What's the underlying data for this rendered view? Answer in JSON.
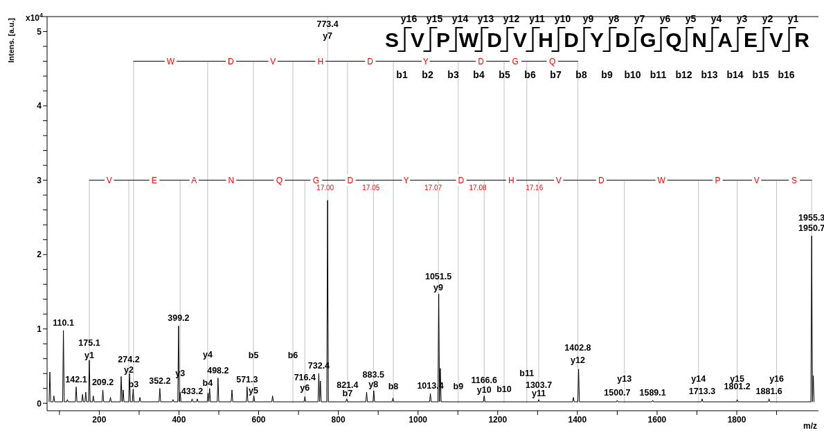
{
  "chart_data": {
    "type": "line",
    "ylabel": "Intens. [a.u.]",
    "xlabel": "m/z",
    "xlim": [
      69,
      2005
    ],
    "ylim": [
      -0.1,
      5.2
    ],
    "xticks": [
      {
        "value": 100,
        "label": null
      },
      200,
      {
        "value": 300,
        "label": null
      },
      400,
      {
        "value": 500,
        "label": null
      },
      600,
      {
        "value": 700,
        "label": null
      },
      800,
      {
        "value": 900,
        "label": null
      },
      1000,
      {
        "value": 1100,
        "label": null
      },
      1200,
      {
        "value": 1300,
        "label": null
      },
      1400,
      {
        "value": 1500,
        "label": null
      },
      1600,
      {
        "value": 1700,
        "label": null
      },
      1800,
      {
        "value": 1900,
        "label": null
      }
    ],
    "yticks": [
      0,
      {
        "value": 0.2,
        "label": null
      },
      {
        "value": 0.4,
        "label": null
      },
      {
        "value": 0.6,
        "label": null
      },
      {
        "value": 0.8,
        "label": null
      },
      1,
      {
        "value": 1.2,
        "label": null
      },
      {
        "value": 1.4,
        "label": null
      },
      {
        "value": 1.6,
        "label": null
      },
      {
        "value": 1.8,
        "label": null
      },
      2,
      {
        "value": 2.2,
        "label": null
      },
      {
        "value": 2.4,
        "label": null
      },
      {
        "value": 2.6,
        "label": null
      },
      {
        "value": 2.8,
        "label": null
      },
      3,
      {
        "value": 3.2,
        "label": null
      },
      {
        "value": 3.4,
        "label": null
      },
      {
        "value": 3.6,
        "label": null
      },
      {
        "value": 3.8,
        "label": null
      },
      4,
      {
        "value": 4.2,
        "label": null
      },
      {
        "value": 4.4,
        "label": null
      },
      {
        "value": 4.6,
        "label": null
      },
      {
        "value": 4.8,
        "label": null
      },
      5,
      {
        "value": 5.2,
        "label": null
      }
    ],
    "series": [
      {
        "color": "#000000",
        "x": [
          74,
          76,
          78,
          84,
          86,
          88,
          108,
          110,
          112,
          118,
          120,
          122,
          140,
          142,
          144,
          156,
          158,
          160,
          164,
          166,
          168,
          173,
          175,
          177,
          183,
          185,
          187,
          207,
          209,
          211,
          226,
          228,
          230,
          253,
          255,
          257,
          258,
          260,
          262,
          274,
          276,
          278,
          283,
          285,
          287,
          300,
          302,
          304,
          350,
          352,
          354,
          383,
          385,
          387,
          397,
          399,
          401,
          401,
          403,
          405,
          431,
          433,
          435,
          444,
          446,
          448,
          471,
          473,
          475,
          475,
          477,
          479,
          496,
          498,
          500,
          531,
          533,
          535,
          569,
          571,
          573,
          586,
          588,
          590,
          633,
          635,
          637,
          714,
          716,
          718,
          749,
          751,
          753,
          753,
          755,
          757,
          771,
          773,
          775,
          819,
          821,
          823,
          869,
          871,
          873,
          887,
          889,
          891,
          935,
          937,
          939,
          1029,
          1031,
          1033,
          1050,
          1052,
          1054,
          1054,
          1056,
          1058,
          1164,
          1166,
          1168,
          1301,
          1303,
          1305,
          1388,
          1390,
          1392,
          1401,
          1403,
          1405,
          1498,
          1500,
          1502,
          1587,
          1589,
          1591,
          1711,
          1713,
          1715,
          1799,
          1801,
          1803,
          1879,
          1881,
          1883,
          1986,
          1988,
          1990,
          1990,
          1992,
          1994
        ],
        "values": [
          0.02,
          0.42,
          0.02,
          0.02,
          0.1,
          0.02,
          0.02,
          0.98,
          0.02,
          0.02,
          0.05,
          0.02,
          0.02,
          0.22,
          0.02,
          0.02,
          0.12,
          0.02,
          0.02,
          0.15,
          0.02,
          0.02,
          0.58,
          0.02,
          0.02,
          0.1,
          0.02,
          0.02,
          0.18,
          0.02,
          0.02,
          0.08,
          0.02,
          0.02,
          0.36,
          0.02,
          0.02,
          0.18,
          0.02,
          0.02,
          0.4,
          0.02,
          0.02,
          0.19,
          0.02,
          0.02,
          0.08,
          0.02,
          0.02,
          0.2,
          0.02,
          0.02,
          0.05,
          0.02,
          0.02,
          1.04,
          0.02,
          0.02,
          0.15,
          0.02,
          0.02,
          0.06,
          0.02,
          0.02,
          0.06,
          0.02,
          0.02,
          0.14,
          0.02,
          0.02,
          0.2,
          0.02,
          0.02,
          0.34,
          0.02,
          0.02,
          0.18,
          0.02,
          0.02,
          0.22,
          0.02,
          0.02,
          0.1,
          0.02,
          0.02,
          0.1,
          0.02,
          0.02,
          0.09,
          0.02,
          0.02,
          0.4,
          0.02,
          0.02,
          0.3,
          0.02,
          0.02,
          2.73,
          0.02,
          0.02,
          0.06,
          0.02,
          0.02,
          0.15,
          0.02,
          0.02,
          0.17,
          0.02,
          0.02,
          0.07,
          0.02,
          0.02,
          0.13,
          0.02,
          0.02,
          1.47,
          0.02,
          0.02,
          0.47,
          0.02,
          0.02,
          0.1,
          0.02,
          0.02,
          0.05,
          0.02,
          0.02,
          0.08,
          0.02,
          0.02,
          0.46,
          0.02,
          0.02,
          0.04,
          0.02,
          0.02,
          0.04,
          0.02,
          0.02,
          0.06,
          0.02,
          0.02,
          0.05,
          0.02,
          0.02,
          0.06,
          0.02,
          0.02,
          2.25,
          0.02,
          0.02,
          0.37,
          0.02
        ]
      },
      {
        "color": "#000000",
        "x": [
          286,
          472,
          587,
          686,
          823,
          938,
          1101,
          1216,
          1273,
          1401
        ],
        "values": [
          4.6,
          4.6,
          4.6,
          4.6,
          4.6,
          4.6,
          4.6,
          4.6,
          4.6,
          4.6
        ]
      },
      {
        "color": "#000000",
        "x": [
          175,
          274,
          403,
          474,
          588,
          716,
          773,
          888,
          1051,
          1166,
          1303,
          1403,
          1518,
          1704,
          1801,
          1900,
          1988
        ],
        "values": [
          3.0,
          3.0,
          3.0,
          3.0,
          3.0,
          3.0,
          3.0,
          3.0,
          3.0,
          3.0,
          3.0,
          3.0,
          3.0,
          3.0,
          3.0,
          3.0,
          3.0
        ]
      }
    ],
    "ref_lines": [
      {
        "axis": "x",
        "value": 175,
        "color": "#c0c0c0"
      },
      {
        "axis": "x",
        "value": 274,
        "color": "#c0c0c0"
      },
      {
        "axis": "x",
        "value": 286,
        "color": "#c0c0c0"
      },
      {
        "axis": "x",
        "value": 403,
        "color": "#c0c0c0"
      },
      {
        "axis": "x",
        "value": 472,
        "color": "#c0c0c0"
      },
      {
        "axis": "x",
        "value": 587,
        "color": "#c0c0c0"
      },
      {
        "axis": "x",
        "value": 686,
        "color": "#c0c0c0"
      },
      {
        "axis": "x",
        "value": 716,
        "color": "#c0c0c0"
      },
      {
        "axis": "x",
        "value": 773,
        "color": "#c0c0c0"
      },
      {
        "axis": "x",
        "value": 823,
        "color": "#c0c0c0"
      },
      {
        "axis": "x",
        "value": 888,
        "color": "#c0c0c0"
      },
      {
        "axis": "x",
        "value": 938,
        "color": "#c0c0c0"
      },
      {
        "axis": "x",
        "value": 1051,
        "color": "#c0c0c0"
      },
      {
        "axis": "x",
        "value": 1101,
        "color": "#c0c0c0"
      },
      {
        "axis": "x",
        "value": 1166,
        "color": "#c0c0c0"
      },
      {
        "axis": "x",
        "value": 1216,
        "color": "#c0c0c0"
      },
      {
        "axis": "x",
        "value": 1273,
        "color": "#c0c0c0"
      },
      {
        "axis": "x",
        "value": 1303,
        "color": "#c0c0c0"
      },
      {
        "axis": "x",
        "value": 1401,
        "color": "#c0c0c0"
      },
      {
        "axis": "x",
        "value": 1518,
        "color": "#c0c0c0"
      },
      {
        "axis": "x",
        "value": 1704,
        "color": "#c0c0c0"
      },
      {
        "axis": "x",
        "value": 1801,
        "color": "#c0c0c0"
      },
      {
        "axis": "x",
        "value": 1900,
        "color": "#c0c0c0"
      },
      {
        "axis": "x",
        "value": 1988,
        "color": "#c0c0c0"
      }
    ],
    "annotations": [
      "x10$^{4}$",
      "S",
      "V",
      "P",
      "W",
      "D",
      "V",
      "H",
      "D",
      "Y",
      "D",
      "G",
      "Q",
      "N",
      "A",
      "E",
      "V",
      "R",
      "y16",
      "y15",
      "y14",
      "y13",
      "y12",
      "y11",
      "y10",
      "y9",
      "y8",
      "y7",
      "y6",
      "y5",
      "y4",
      "y3",
      "y2",
      "y1",
      "b1",
      "b2",
      "b3",
      "b4",
      "b5",
      "b6",
      "b7",
      "b8",
      "b9",
      "b10",
      "b11",
      "b12",
      "b13",
      "b14",
      "b15",
      "b16",
      {
        "text": "W",
        "x": 379,
        "y": 4.6
      },
      {
        "text": "D",
        "x": 530,
        "y": 4.6
      },
      {
        "text": "V",
        "x": 636,
        "y": 4.6
      },
      {
        "text": "H",
        "x": 755,
        "y": 4.6
      },
      {
        "text": "D",
        "x": 880,
        "y": 4.6
      },
      {
        "text": "Y",
        "x": 1019,
        "y": 4.6
      },
      {
        "text": "D",
        "x": 1158,
        "y": 4.6
      },
      {
        "text": "G",
        "x": 1244,
        "y": 4.6
      },
      {
        "text": "Q",
        "x": 1337,
        "y": 4.6
      },
      {
        "text": "V",
        "x": 225,
        "y": 3.0
      },
      {
        "text": "E",
        "x": 338,
        "y": 3.0
      },
      {
        "text": "A",
        "x": 438,
        "y": 3.0
      },
      {
        "text": "N",
        "x": 531,
        "y": 3.0
      },
      {
        "text": "Q",
        "x": 652,
        "y": 3.0
      },
      {
        "text": "G",
        "x": 744,
        "y": 3.0
      },
      {
        "text": "D",
        "x": 830,
        "y": 3.0
      },
      {
        "text": "Y",
        "x": 970,
        "y": 3.0
      },
      {
        "text": "D",
        "x": 1108,
        "y": 3.0
      },
      {
        "text": "H",
        "x": 1234,
        "y": 3.0
      },
      {
        "text": "V",
        "x": 1353,
        "y": 3.0
      },
      {
        "text": "D",
        "x": 1460,
        "y": 3.0
      },
      {
        "text": "W",
        "x": 1611,
        "y": 3.0
      },
      {
        "text": "P",
        "x": 1752,
        "y": 3.0
      },
      {
        "text": "V",
        "x": 1850,
        "y": 3.0
      },
      {
        "text": "S",
        "x": 1944,
        "y": 3.0
      },
      {
        "text": "17.00",
        "x": 767,
        "y": 3.0
      },
      {
        "text": "17.05",
        "x": 882,
        "y": 3.0
      },
      {
        "text": "17.07",
        "x": 1038,
        "y": 3.0
      },
      {
        "text": "17.08",
        "x": 1150,
        "y": 3.0
      },
      {
        "text": "17.16",
        "x": 1292,
        "y": 3.0
      },
      {
        "text": "110.1",
        "x": 110,
        "y": 0.98
      },
      {
        "text": "175.1",
        "x": 175,
        "y": 0.71
      },
      {
        "text": "y1",
        "x": 175,
        "y": 0.54
      },
      {
        "text": "142.1",
        "x": 142,
        "y": 0.22
      },
      {
        "text": "209.2",
        "x": 209,
        "y": 0.18
      },
      {
        "text": "274.2",
        "x": 274,
        "y": 0.49
      },
      {
        "text": "y2",
        "x": 274,
        "y": 0.35
      },
      {
        "text": "b3",
        "x": 286,
        "y": 0.15
      },
      {
        "text": "352.2",
        "x": 352,
        "y": 0.2
      },
      {
        "text": "399.2",
        "x": 399,
        "y": 1.04
      },
      {
        "text": "y3",
        "x": 403,
        "y": 0.3
      },
      {
        "text": "433.2",
        "x": 433,
        "y": 0.06
      },
      {
        "text": "b4",
        "x": 472,
        "y": 0.17
      },
      {
        "text": "y4",
        "x": 472,
        "y": 0.55
      },
      {
        "text": "498.2",
        "x": 498,
        "y": 0.34
      },
      {
        "text": "b5",
        "x": 587,
        "y": 0.54
      },
      {
        "text": "571.3",
        "x": 571,
        "y": 0.22
      },
      {
        "text": "y5",
        "x": 587,
        "y": 0.07
      },
      {
        "text": "b6",
        "x": 686,
        "y": 0.54
      },
      {
        "text": "732.4",
        "x": 751,
        "y": 0.4
      },
      {
        "text": "716.4",
        "x": 716,
        "y": 0.24
      },
      {
        "text": "y6",
        "x": 716,
        "y": 0.1
      },
      {
        "text": "773.4",
        "x": 773,
        "y": 5.0
      },
      {
        "text": "y7",
        "x": 773,
        "y": 4.84
      },
      {
        "text": "821.4",
        "x": 823,
        "y": 0.14
      },
      {
        "text": "b7",
        "x": 823,
        "y": 0.03
      },
      {
        "text": "883.5",
        "x": 888,
        "y": 0.28
      },
      {
        "text": "y8",
        "x": 888,
        "y": 0.15
      },
      {
        "text": "b8",
        "x": 938,
        "y": 0.12
      },
      {
        "text": "1013.4",
        "x": 1031,
        "y": 0.13
      },
      {
        "text": "1051.5",
        "x": 1051,
        "y": 1.6
      },
      {
        "text": "y9",
        "x": 1051,
        "y": 1.45
      },
      {
        "text": "b9",
        "x": 1101,
        "y": 0.12
      },
      {
        "text": "1166.6",
        "x": 1166,
        "y": 0.21
      },
      {
        "text": "y10",
        "x": 1166,
        "y": 0.08
      },
      {
        "text": "b10",
        "x": 1216,
        "y": 0.09
      },
      {
        "text": "b11",
        "x": 1273,
        "y": 0.3
      },
      {
        "text": "1303.7",
        "x": 1303,
        "y": 0.14
      },
      {
        "text": "y11",
        "x": 1303,
        "y": 0.03
      },
      {
        "text": "1402.8",
        "x": 1401,
        "y": 0.64
      },
      {
        "text": "y12",
        "x": 1401,
        "y": 0.48
      },
      {
        "text": "y13",
        "x": 1518,
        "y": 0.23
      },
      {
        "text": "1500.7",
        "x": 1500,
        "y": 0.04
      },
      {
        "text": "1589.1",
        "x": 1589,
        "y": 0.04
      },
      {
        "text": "y14",
        "x": 1704,
        "y": 0.23
      },
      {
        "text": "1713.3",
        "x": 1713,
        "y": 0.06
      },
      {
        "text": "y15",
        "x": 1801,
        "y": 0.23
      },
      {
        "text": "1801.2",
        "x": 1801,
        "y": 0.12
      },
      {
        "text": "y16",
        "x": 1900,
        "y": 0.23
      },
      {
        "text": "1881.6",
        "x": 1881,
        "y": 0.06
      },
      {
        "text": "1955.3",
        "x": 1988,
        "y": 2.25
      },
      {
        "text": "1950.7",
        "x": 1988,
        "y": 2.25
      }
    ]
  }
}
